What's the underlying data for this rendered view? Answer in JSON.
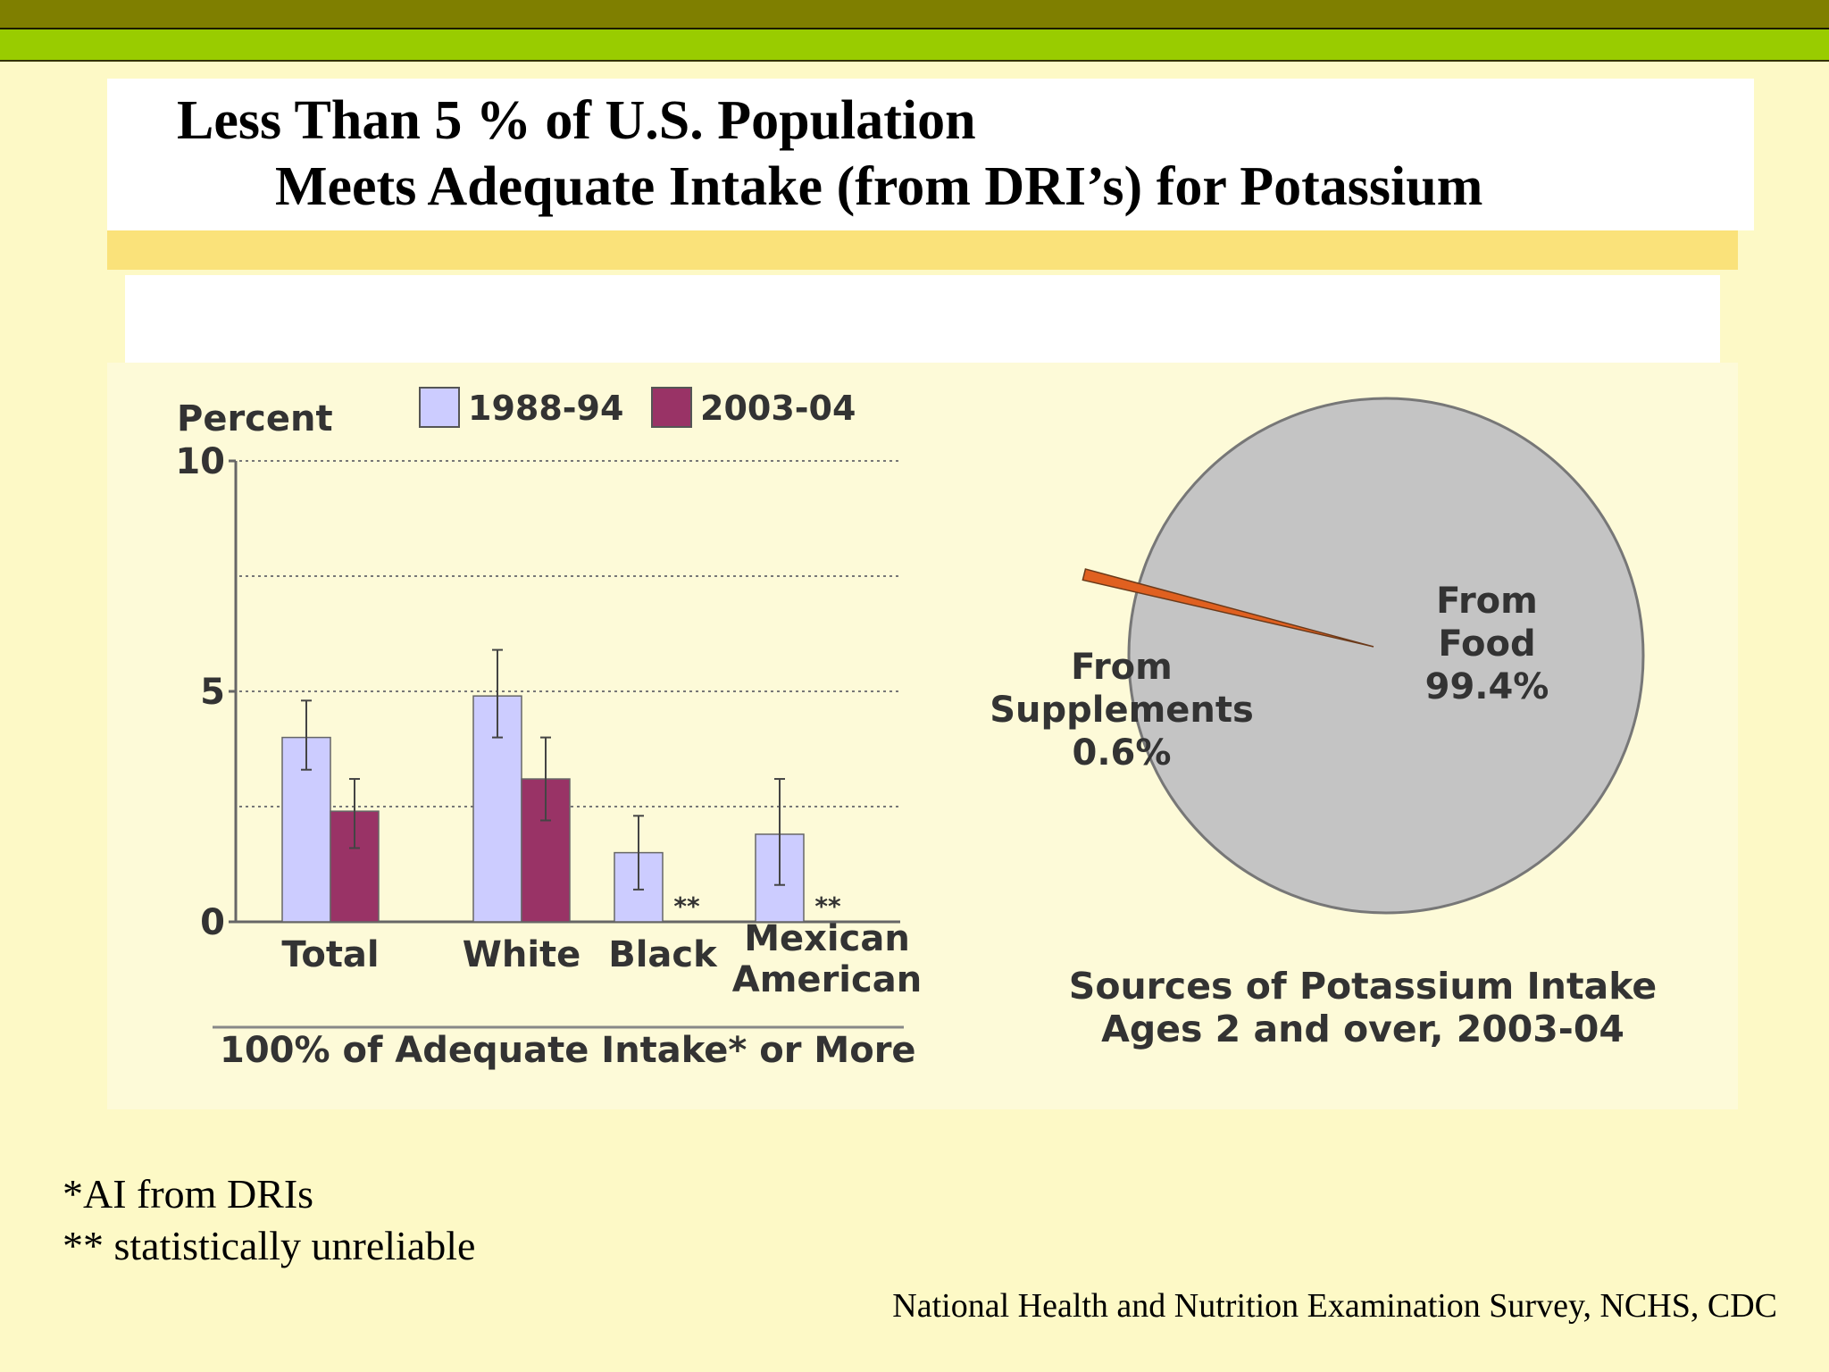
{
  "slide": {
    "title_line1": "Less Than 5 % of U.S. Population",
    "title_line2": "Meets Adequate Intake (from DRI’s) for Potassium",
    "footnotes": [
      "*AI from DRIs",
      "** statistically unreliable"
    ],
    "source": "National Health and Nutrition Examination Survey, NCHS, CDC"
  },
  "chart_data": [
    {
      "type": "bar",
      "ylabel": "Percent",
      "ylim": [
        0,
        10
      ],
      "yticks": [
        0,
        5,
        10
      ],
      "grid": true,
      "categories": [
        "Total",
        "White",
        "Black",
        "Mexican American"
      ],
      "category_labels": [
        [
          "Total"
        ],
        [
          "White"
        ],
        [
          "Black"
        ],
        [
          "Mexican",
          "American"
        ]
      ],
      "series": [
        {
          "name": "1988-94",
          "color": "#ccccff",
          "values": [
            4.0,
            4.9,
            1.5,
            1.9
          ],
          "err_low": [
            3.3,
            4.0,
            0.7,
            0.8
          ],
          "err_high": [
            4.8,
            5.9,
            2.3,
            3.1
          ]
        },
        {
          "name": "2003-04",
          "color": "#993366",
          "values": [
            2.4,
            3.1,
            null,
            null
          ],
          "err_low": [
            1.6,
            2.2,
            null,
            null
          ],
          "err_high": [
            3.1,
            4.0,
            null,
            null
          ]
        }
      ],
      "unreliable_marker": "**",
      "legend_position": "top",
      "xlabel": "100% of Adequate Intake* or More"
    },
    {
      "type": "pie",
      "title_lines": [
        "Sources of Potassium Intake",
        "Ages 2 and over, 2003-04"
      ],
      "slices": [
        {
          "label": "From Food",
          "label_lines": [
            "From",
            "Food"
          ],
          "value": 99.4,
          "display": "99.4%",
          "color": "#c4c4c4"
        },
        {
          "label": "From Supplements",
          "label_lines": [
            "From",
            "Supplements"
          ],
          "value": 0.6,
          "display": "0.6%",
          "color": "#e06020"
        }
      ]
    }
  ]
}
